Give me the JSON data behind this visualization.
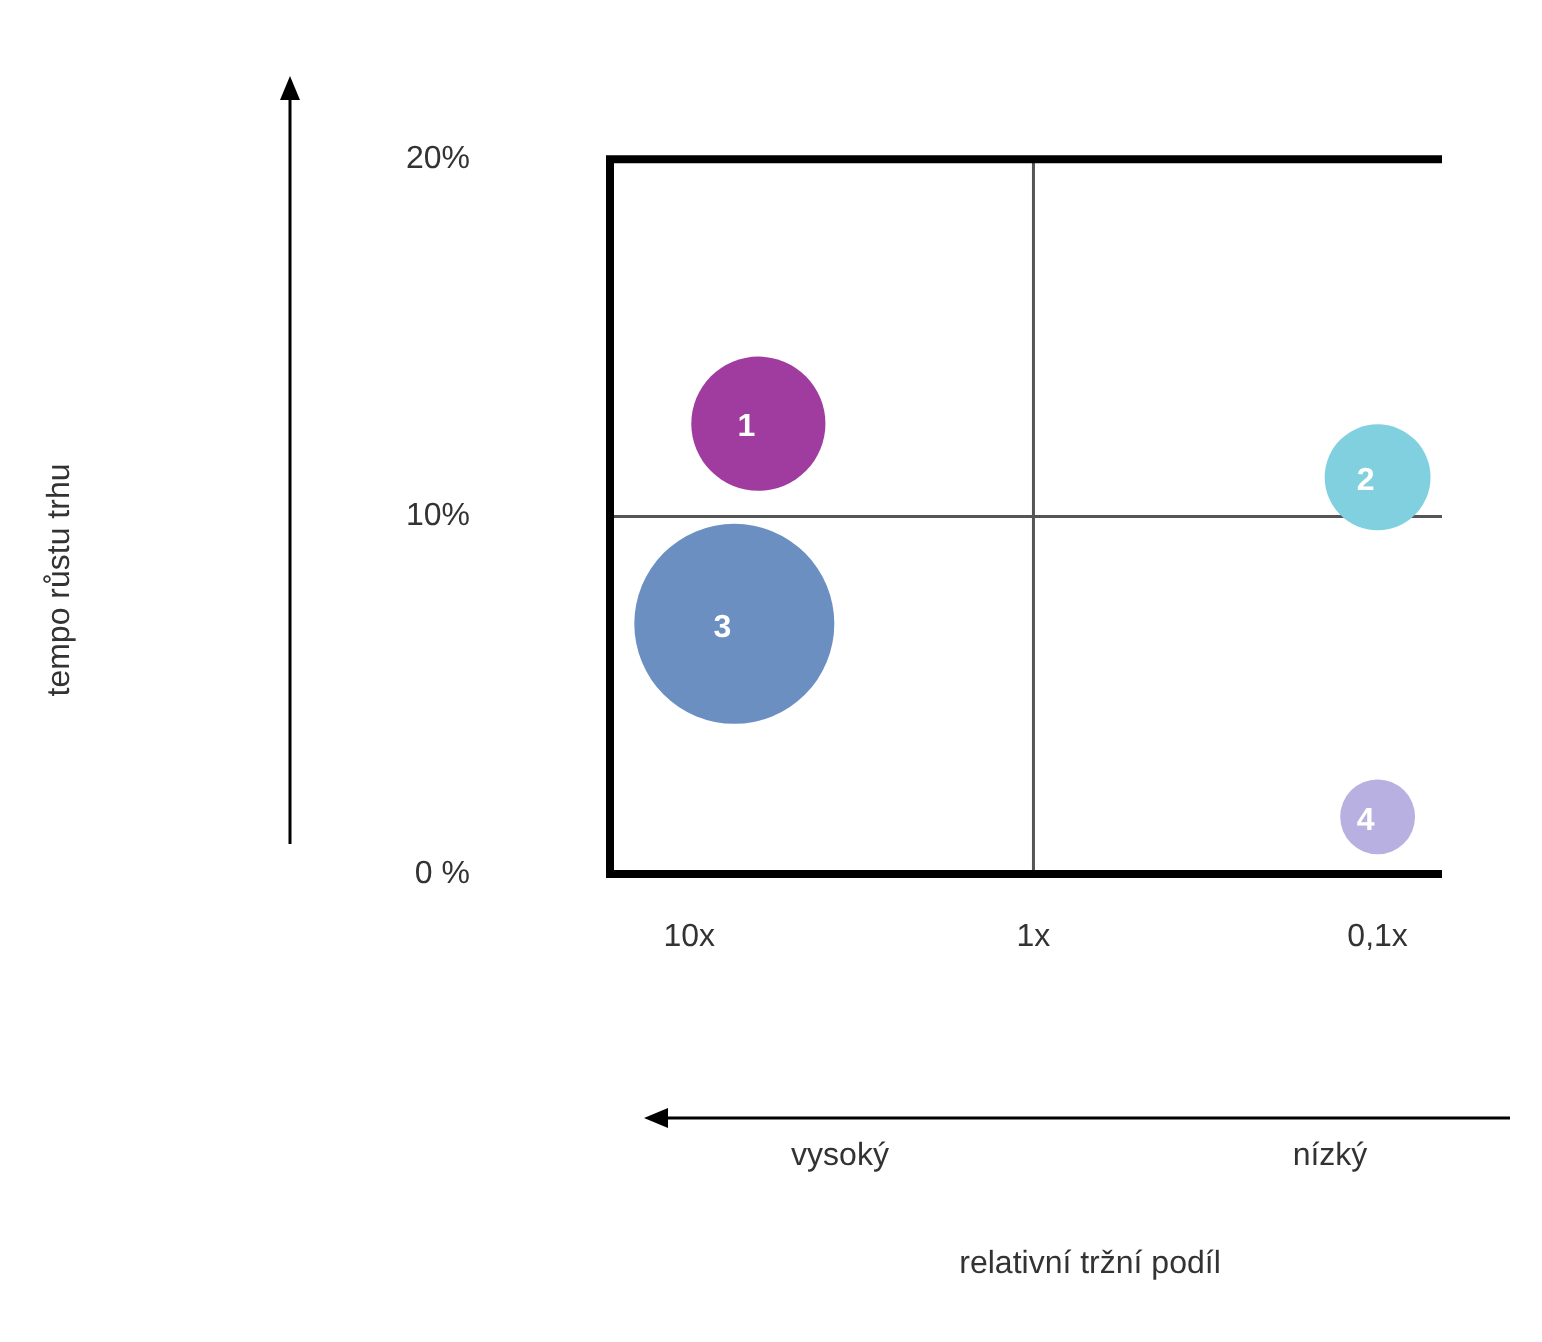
{
  "chart_data": {
    "type": "bubble",
    "log": "x",
    "x": [
      6.3,
      0.1,
      7.4,
      0.1
    ],
    "values": [
      12.6,
      11.1,
      7.0,
      1.6
    ],
    "sizes": [
      0.45,
      0.28,
      1,
      0.14
    ],
    "colors": [
      "#a03ca0",
      "#80d0e0",
      "#6a8fc0",
      "#b8b0e0"
    ],
    "xlim": [
      17,
      0.065
    ],
    "xticks": [
      {
        "value": 10,
        "label": "10x"
      },
      {
        "value": 1,
        "label": "1x"
      },
      {
        "value": 0.1,
        "label": "0,1x"
      }
    ],
    "ylim": [
      0,
      20
    ],
    "yticks": [
      {
        "value": 0,
        "label": "0 %"
      },
      {
        "value": 10,
        "label": "10%"
      },
      {
        "value": 20,
        "label": "20%"
      }
    ],
    "ref_lines": [
      {
        "axis": "x",
        "value": 1
      },
      {
        "axis": "y",
        "value": 10
      }
    ],
    "annotations": [
      "vysoký",
      "nízký",
      "relativní tržní podíl",
      "tempo růstu trhu",
      {
        "text": "1",
        "x": 6.3,
        "y": 12.6
      },
      {
        "text": "2",
        "x": 0.1,
        "y": 11.1
      },
      {
        "text": "3",
        "x": 7.4,
        "y": 7.0
      },
      {
        "text": "4",
        "x": 0.1,
        "y": 1.6
      }
    ],
    "grid": false,
    "legend": false
  }
}
